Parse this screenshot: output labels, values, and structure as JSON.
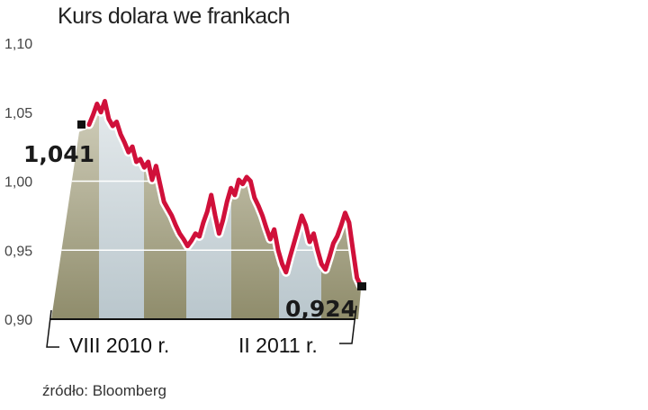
{
  "chart_data": {
    "type": "area",
    "title": "Kurs dolara we frankach",
    "source": "źródło: Bloomberg",
    "xlabel": "",
    "ylabel": "",
    "ylim": [
      0.9,
      1.1
    ],
    "yticks": [
      "1,10",
      "1,05",
      "1,00",
      "0,95",
      "0,90"
    ],
    "ytick_values": [
      1.1,
      1.05,
      1.0,
      0.95,
      0.9
    ],
    "xticks": [
      "VIII 2010 r.",
      "II 2011 r."
    ],
    "grid": true,
    "start_label": "1,041",
    "end_label": "0,924",
    "line_color": "#d0103a",
    "band_colors": [
      "#8f8c6b",
      "#b9c6cc"
    ],
    "values": [
      1.041,
      1.048,
      1.056,
      1.05,
      1.058,
      1.045,
      1.04,
      1.043,
      1.034,
      1.028,
      1.021,
      1.025,
      1.014,
      1.016,
      1.01,
      1.014,
      1.001,
      1.011,
      0.998,
      0.985,
      0.98,
      0.975,
      0.968,
      0.962,
      0.958,
      0.953,
      0.957,
      0.962,
      0.96,
      0.97,
      0.978,
      0.99,
      0.975,
      0.962,
      0.972,
      0.985,
      0.995,
      0.99,
      1.001,
      0.998,
      1.003,
      1.0,
      0.988,
      0.982,
      0.975,
      0.966,
      0.958,
      0.965,
      0.95,
      0.94,
      0.934,
      0.945,
      0.955,
      0.965,
      0.975,
      0.968,
      0.956,
      0.962,
      0.95,
      0.94,
      0.936,
      0.945,
      0.955,
      0.96,
      0.968,
      0.977,
      0.97,
      0.95,
      0.93,
      0.924
    ]
  }
}
